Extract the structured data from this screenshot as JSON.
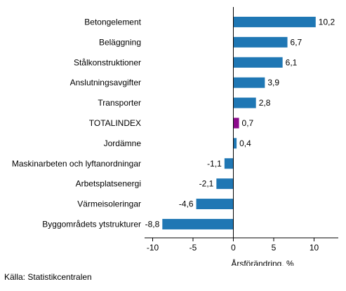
{
  "chart_data": {
    "type": "bar",
    "orientation": "horizontal",
    "categories": [
      "Betongelement",
      "Beläggning",
      "Stålkonstruktioner",
      "Anslutningsavgifter",
      "Transporter",
      "TOTALINDEX",
      "Jordämne",
      "Maskinarbeten och lyftanordningar",
      "Arbetsplatsenergi",
      "Värmeisoleringar",
      "Byggområdets ytstrukturer"
    ],
    "values": [
      10.2,
      6.7,
      6.1,
      3.9,
      2.8,
      0.7,
      0.4,
      -1.1,
      -2.1,
      -4.6,
      -8.8
    ],
    "value_labels": [
      "10,2",
      "6,7",
      "6,1",
      "3,9",
      "2,8",
      "0,7",
      "0,4",
      "-1,1",
      "-2,1",
      "-4,6",
      "-8,8"
    ],
    "highlight_category": "TOTALINDEX",
    "xlabel": "Årsförändring, %",
    "xlim": [
      -11,
      13
    ],
    "xticks": [
      -10,
      -5,
      0,
      5,
      10
    ],
    "xtick_labels": [
      "-10",
      "-5",
      "0",
      "5",
      "10"
    ],
    "grid": false,
    "legend": "none",
    "colors": {
      "bar": "#1f77b4",
      "highlight": "#8b0a8b",
      "axis": "#000000"
    }
  },
  "source": "Källa: Statistikcentralen"
}
